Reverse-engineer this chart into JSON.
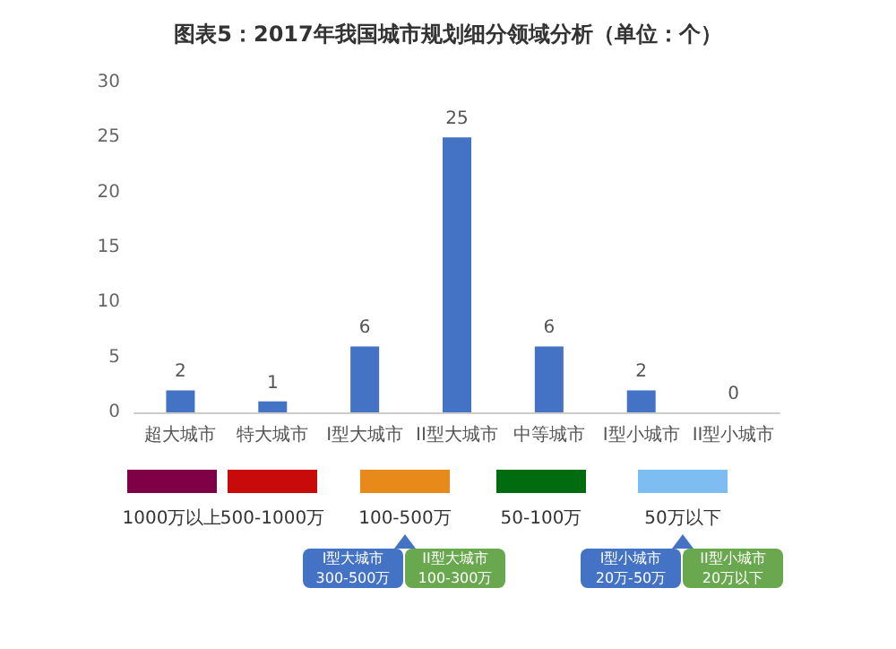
{
  "chart_data": [
    {
      "type": "bar",
      "title": "图表5：2017年我国城市规划细分领域分析（单位：个）",
      "categories": [
        "超大城市",
        "特大城市",
        "I型大城市",
        "II型大城市",
        "中等城市",
        "I型小城市",
        "II型小城市"
      ],
      "values": [
        2,
        1,
        6,
        25,
        6,
        2,
        0
      ],
      "color": "#4472c4",
      "ylim": [
        0,
        30
      ],
      "yticks": [
        0,
        5,
        10,
        15,
        20,
        25,
        30
      ],
      "grid": false,
      "data_labels": true
    },
    {
      "type": "other",
      "categories": [
        "1000万以上",
        "500-1000万",
        "100-500万",
        "50-100万",
        "50万以下"
      ],
      "colors": [
        "#7f0046",
        "#c80a0a",
        "#e88a1a",
        "#006b0f",
        "#7dbdf2"
      ],
      "annotations": [
        "I型大城市\n300-500万",
        "II型大城市\n100-300万",
        "I型小城市\n20万-50万",
        "II型小城市\n20万以下"
      ]
    }
  ]
}
